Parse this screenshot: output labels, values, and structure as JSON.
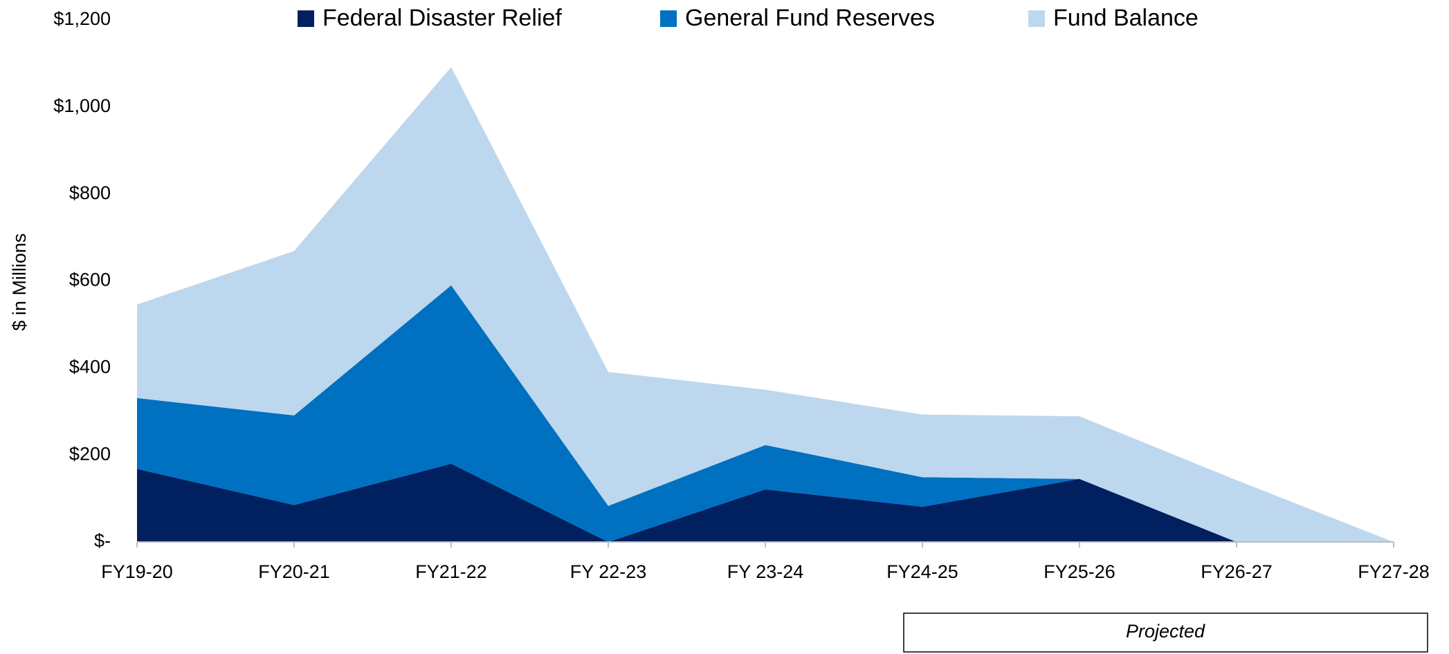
{
  "chart_data": {
    "type": "stacked_area",
    "y_label": "$ in Millions",
    "categories": [
      "FY19-20",
      "FY20-21",
      "FY21-22",
      "FY 22-23",
      "FY 23-24",
      "FY24-25",
      "FY25-26",
      "FY26-27",
      "FY27-28"
    ],
    "series": [
      {
        "name": "Federal Disaster Relief",
        "color": "#002060",
        "values": [
          168,
          85,
          180,
          0,
          121,
          81,
          145,
          0,
          0
        ]
      },
      {
        "name": "General Fund Reserves",
        "color": "#0070c0",
        "values": [
          163,
          206,
          410,
          83,
          102,
          68,
          0,
          0,
          0
        ]
      },
      {
        "name": "Fund Balance",
        "color": "#bdd7ee",
        "values": [
          215,
          378,
          502,
          308,
          127,
          144,
          144,
          142,
          0
        ]
      }
    ],
    "ylim": [
      0,
      1200
    ],
    "yticks": [
      {
        "value": 0,
        "label": "$-"
      },
      {
        "value": 200,
        "label": "$200"
      },
      {
        "value": 400,
        "label": "$400"
      },
      {
        "value": 600,
        "label": "$600"
      },
      {
        "value": 800,
        "label": "$800"
      },
      {
        "value": 1000,
        "label": "$1,000"
      },
      {
        "value": 1200,
        "label": "$1,200"
      }
    ],
    "annotation": "Projected"
  }
}
